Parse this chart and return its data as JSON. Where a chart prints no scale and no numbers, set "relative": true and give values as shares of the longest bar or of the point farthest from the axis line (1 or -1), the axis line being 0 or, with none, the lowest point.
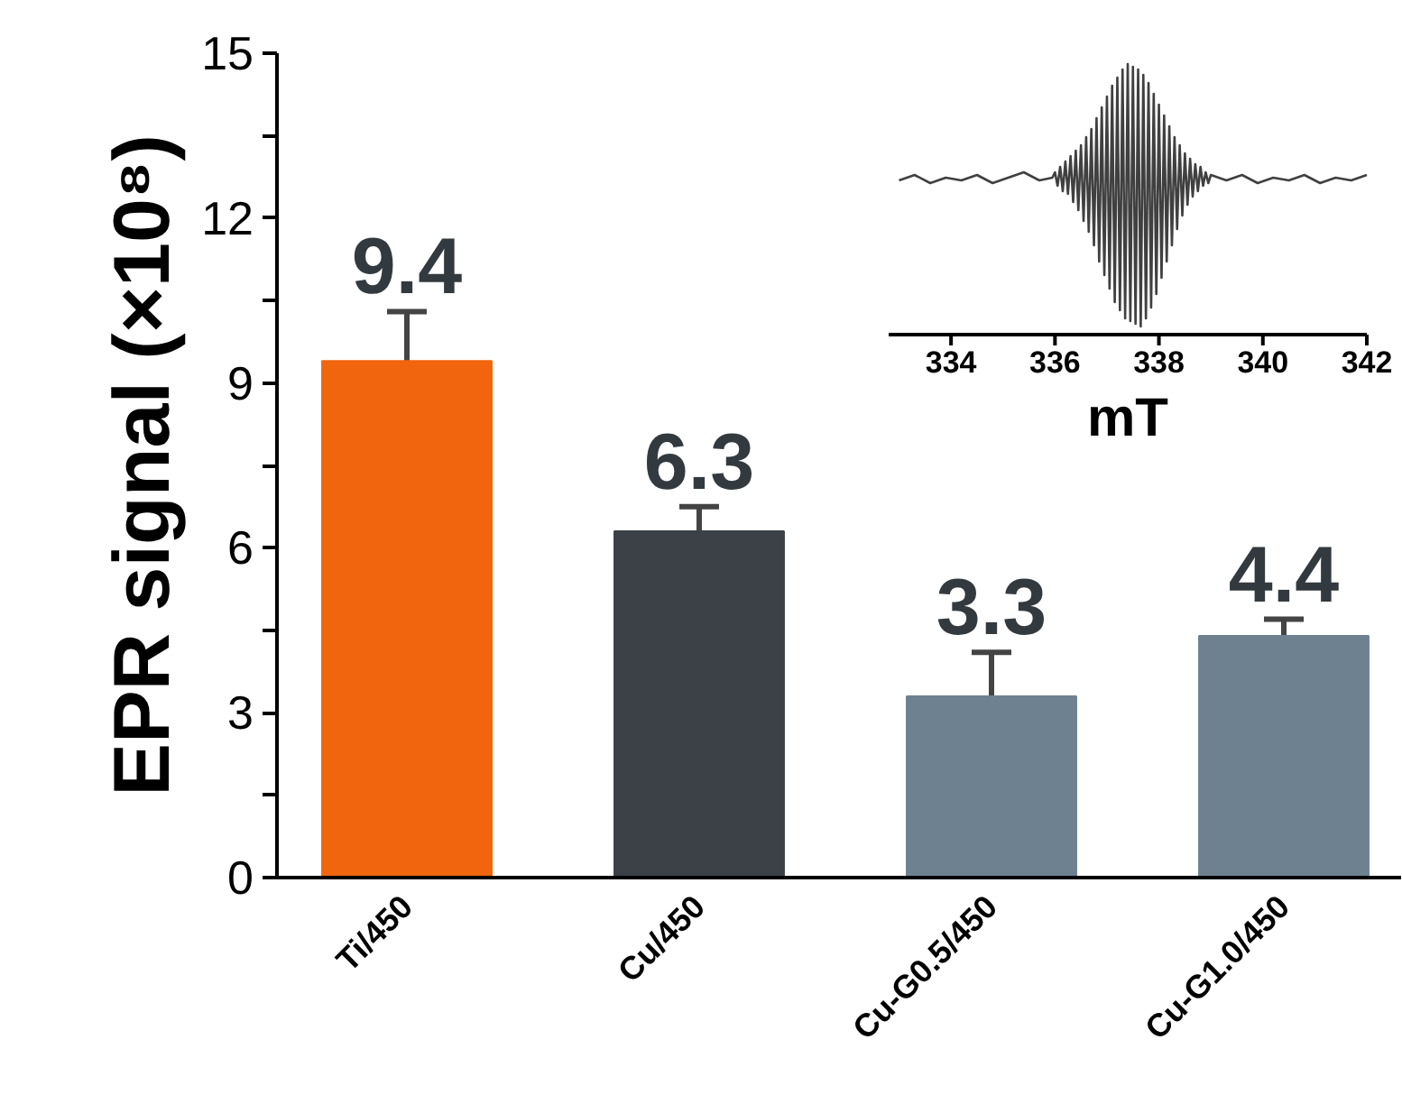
{
  "chart_data": [
    {
      "type": "bar",
      "ylabel": "EPR signal (×10⁸)",
      "categories": [
        "Ti/450",
        "Cu/450",
        "Cu-G0.5/450",
        "Cu-G1.0/450"
      ],
      "values": [
        9.4,
        6.3,
        3.3,
        4.4
      ],
      "colors": [
        "#f0650e",
        "#3c4148",
        "#6e8191",
        "#6e8191"
      ],
      "errors": [
        0.9,
        0.45,
        0.8,
        0.3
      ],
      "data_labels": true,
      "ylim": [
        0,
        15
      ],
      "yticks": [
        0,
        {
          "value": 1.5,
          "label": null
        },
        3,
        {
          "value": 4.5,
          "label": null
        },
        6,
        {
          "value": 7.5,
          "label": null
        },
        9,
        {
          "value": 10.5,
          "label": null
        },
        12,
        {
          "value": 13.5,
          "label": null
        },
        15
      ]
    },
    {
      "type": "line",
      "relative": true,
      "xlabel": "mT",
      "color": "#404040",
      "tick_labels": "x",
      "xlim": [
        332.8,
        342
      ],
      "xticks": [
        334,
        336,
        338,
        340,
        342
      ],
      "x": [
        333.0,
        333.3,
        333.6,
        333.9,
        334.2,
        334.5,
        334.8,
        335.1,
        335.4,
        335.7,
        335.95,
        336.0,
        336.05,
        336.1,
        336.15,
        336.2,
        336.25,
        336.3,
        336.35,
        336.4,
        336.45,
        336.5,
        336.55,
        336.6,
        336.65,
        336.7,
        336.75,
        336.8,
        336.85,
        336.9,
        336.95,
        337.0,
        337.05,
        337.1,
        337.15,
        337.2,
        337.25,
        337.3,
        337.35,
        337.4,
        337.45,
        337.5,
        337.55,
        337.6,
        337.65,
        337.7,
        337.75,
        337.8,
        337.85,
        337.9,
        337.95,
        338.0,
        338.05,
        338.1,
        338.15,
        338.2,
        338.25,
        338.3,
        338.35,
        338.4,
        338.45,
        338.5,
        338.55,
        338.6,
        338.65,
        338.7,
        338.75,
        338.8,
        338.85,
        338.9,
        338.95,
        339.0,
        339.3,
        339.6,
        339.9,
        340.2,
        340.5,
        340.8,
        341.1,
        341.4,
        341.7,
        342.0
      ],
      "values": [
        0.57,
        0.59,
        0.56,
        0.58,
        0.57,
        0.59,
        0.56,
        0.58,
        0.6,
        0.57,
        0.58,
        0.6,
        0.55,
        0.62,
        0.53,
        0.64,
        0.52,
        0.66,
        0.49,
        0.68,
        0.46,
        0.7,
        0.42,
        0.73,
        0.38,
        0.76,
        0.33,
        0.8,
        0.27,
        0.84,
        0.22,
        0.88,
        0.17,
        0.92,
        0.12,
        0.95,
        0.09,
        0.98,
        0.06,
        1.0,
        0.05,
        0.99,
        0.04,
        0.98,
        0.03,
        0.96,
        0.06,
        0.93,
        0.1,
        0.89,
        0.15,
        0.85,
        0.21,
        0.81,
        0.27,
        0.77,
        0.33,
        0.73,
        0.39,
        0.7,
        0.44,
        0.67,
        0.48,
        0.65,
        0.51,
        0.63,
        0.53,
        0.62,
        0.55,
        0.6,
        0.56,
        0.59,
        0.57,
        0.59,
        0.56,
        0.58,
        0.57,
        0.59,
        0.56,
        0.58,
        0.57,
        0.59
      ]
    }
  ]
}
